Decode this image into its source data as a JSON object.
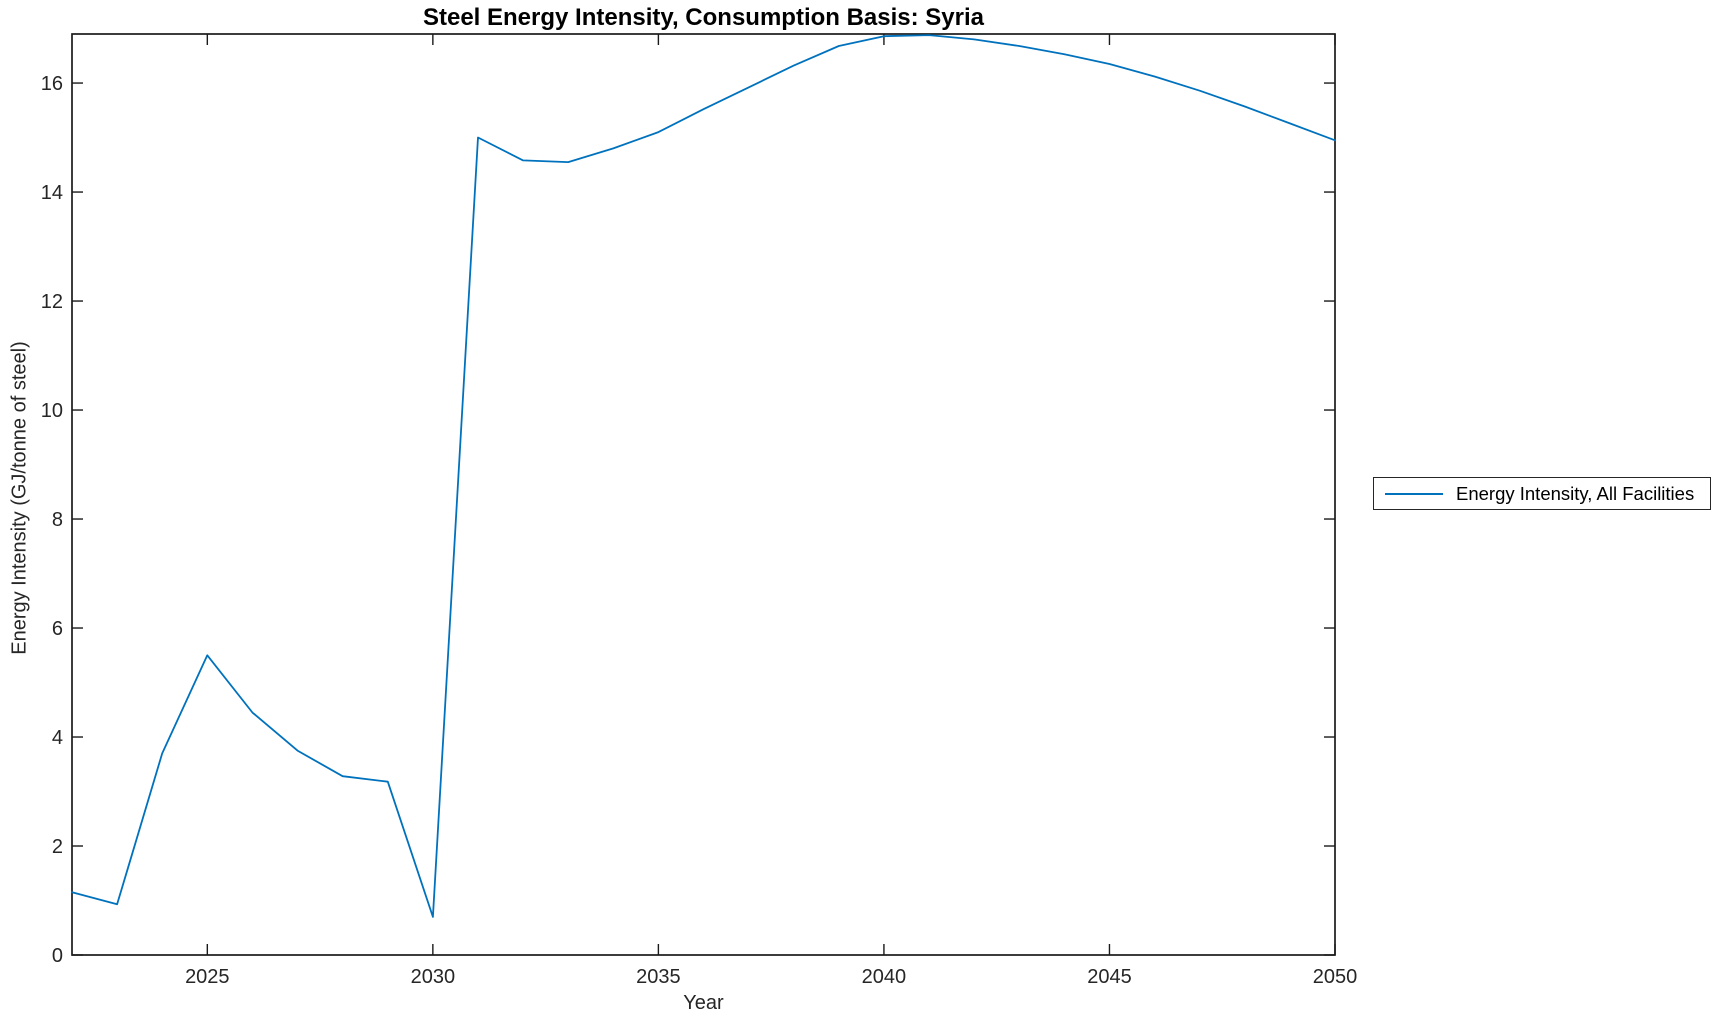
{
  "chart_data": {
    "type": "line",
    "title": "Steel Energy Intensity, Consumption Basis: Syria",
    "xlabel": "Year",
    "ylabel": "Energy Intensity (GJ/tonne of steel)",
    "xlim": [
      2022,
      2050
    ],
    "ylim": [
      0,
      16.9
    ],
    "x_ticks": [
      2025,
      2030,
      2035,
      2040,
      2045,
      2050
    ],
    "y_ticks": [
      0,
      2,
      4,
      6,
      8,
      10,
      12,
      14,
      16
    ],
    "grid": false,
    "box": true,
    "legend": {
      "position": "outside-right",
      "entries": [
        {
          "label": "Energy Intensity, All Facilities",
          "color": "#0072BD"
        }
      ]
    },
    "series": [
      {
        "name": "Energy Intensity, All Facilities",
        "color": "#0072BD",
        "x": [
          2022,
          2023,
          2024,
          2025,
          2026,
          2027,
          2028,
          2029,
          2030,
          2031,
          2032,
          2033,
          2034,
          2035,
          2036,
          2037,
          2038,
          2039,
          2040,
          2041,
          2042,
          2043,
          2044,
          2045,
          2046,
          2047,
          2048,
          2049,
          2050
        ],
        "y": [
          1.15,
          0.93,
          3.7,
          5.5,
          4.45,
          3.75,
          3.28,
          3.18,
          0.7,
          15.0,
          14.58,
          14.55,
          14.8,
          15.1,
          15.52,
          15.92,
          16.32,
          16.68,
          16.86,
          16.88,
          16.8,
          16.68,
          16.53,
          16.35,
          16.12,
          15.86,
          15.57,
          15.26,
          14.95
        ]
      }
    ]
  },
  "colors": {
    "background": "#ffffff",
    "axis": "#1a1a1a",
    "tick_label": "#262626",
    "title": "#000000",
    "series_line": "#0072BD"
  }
}
